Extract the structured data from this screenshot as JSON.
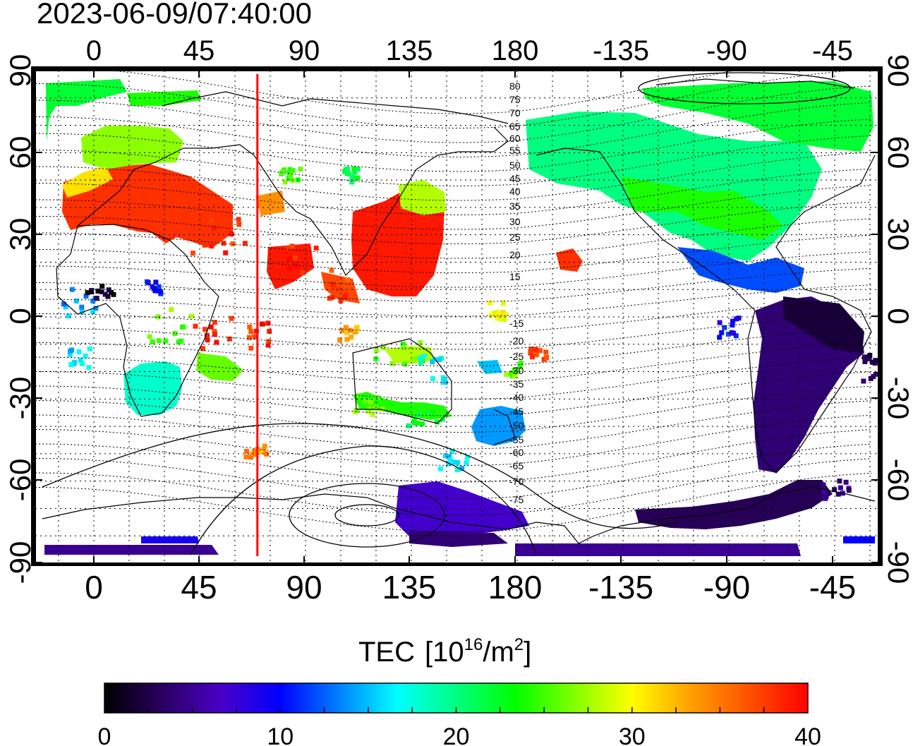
{
  "title": "2023-06-09/07:40:00",
  "colorbar": {
    "label_prefix": "TEC",
    "unit_base": "10",
    "unit_exp": "16",
    "unit_mid": "/m",
    "unit_exp2": "2",
    "ticks": [
      "0",
      "10",
      "20",
      "30",
      "40"
    ],
    "min": 0,
    "max": 40,
    "stops": [
      "#000000",
      "#2a0060",
      "#4a00c8",
      "#0000ff",
      "#0080ff",
      "#00ffff",
      "#00ff80",
      "#00ff00",
      "#80ff00",
      "#ffff00",
      "#ffa000",
      "#ff5000",
      "#ff0000"
    ]
  },
  "map": {
    "lon_ticks": [
      "0",
      "45",
      "90",
      "135",
      "180",
      "-135",
      "-90",
      "-45"
    ],
    "lat_ticks": [
      "90",
      "60",
      "30",
      "0",
      "-30",
      "-60",
      "-90"
    ],
    "marker_longitude": 70,
    "marker_color": "#ff0000",
    "contour_labels": [
      "80",
      "75",
      "70",
      "65",
      "60",
      "55",
      "50",
      "45",
      "40",
      "35",
      "30",
      "25",
      "20",
      "15",
      "-15",
      "-20",
      "-25",
      "-30",
      "-35",
      "-40",
      "-45",
      "-50",
      "-55",
      "-60",
      "-65",
      "-70",
      "-75"
    ]
  },
  "tec_regions": [
    {
      "name": "europe",
      "value": 38
    },
    {
      "name": "north-europe",
      "value": 27
    },
    {
      "name": "east-asia",
      "value": 39
    },
    {
      "name": "north-america",
      "value": 20
    },
    {
      "name": "alaska-canada-north",
      "value": 22
    },
    {
      "name": "caribbean",
      "value": 12
    },
    {
      "name": "south-america",
      "value": 4
    },
    {
      "name": "southern-africa",
      "value": 18
    },
    {
      "name": "australia",
      "value": 24
    },
    {
      "name": "new-zealand",
      "value": 14
    },
    {
      "name": "antarctica-east",
      "value": 7
    },
    {
      "name": "antarctica-west",
      "value": 3
    },
    {
      "name": "hawaii",
      "value": 38
    },
    {
      "name": "south-pole-band",
      "value": 5
    }
  ]
}
